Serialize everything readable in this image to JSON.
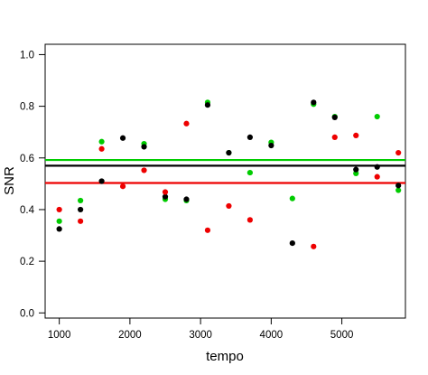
{
  "chart_data": {
    "type": "scatter",
    "xlabel": "tempo",
    "ylabel": "SNR",
    "xlim": [
      800,
      5900
    ],
    "ylim": [
      -0.02,
      1.04
    ],
    "xticks": [
      1000,
      2000,
      3000,
      4000,
      5000
    ],
    "xtick_labels": [
      "1000",
      "2000",
      "3000",
      "4000",
      "5000"
    ],
    "yticks": [
      0.0,
      0.2,
      0.4,
      0.6,
      0.8,
      1.0
    ],
    "ytick_labels": [
      "0.0",
      "0.2",
      "0.4",
      "0.6",
      "0.8",
      "1.0"
    ],
    "grid": false,
    "series": [
      {
        "color": "#00cc00",
        "x": [
          1000,
          1300,
          1600,
          2200,
          2500,
          2800,
          3100,
          3400,
          3700,
          4000,
          4300,
          4600,
          4900,
          5200,
          5500,
          5800
        ],
        "y": [
          0.355,
          0.435,
          0.663,
          0.655,
          0.44,
          0.435,
          0.815,
          0.62,
          0.543,
          0.66,
          0.443,
          0.808,
          0.76,
          0.54,
          0.76,
          0.475
        ],
        "hline": 0.592
      },
      {
        "color": "#000000",
        "x": [
          1000,
          1300,
          1600,
          1900,
          2200,
          2500,
          2800,
          3100,
          3400,
          3700,
          4000,
          4300,
          4600,
          4900,
          5200,
          5500,
          5800
        ],
        "y": [
          0.325,
          0.4,
          0.51,
          0.677,
          0.643,
          0.45,
          0.44,
          0.805,
          0.62,
          0.68,
          0.648,
          0.27,
          0.815,
          0.757,
          0.555,
          0.565,
          0.493
        ],
        "hline": 0.57
      },
      {
        "color": "#ee0000",
        "x": [
          1000,
          1300,
          1600,
          1900,
          2200,
          2500,
          2800,
          3100,
          3400,
          3700,
          4600,
          4900,
          5200,
          5500,
          5800
        ],
        "y": [
          0.4,
          0.355,
          0.635,
          0.49,
          0.552,
          0.468,
          0.733,
          0.32,
          0.414,
          0.36,
          0.257,
          0.68,
          0.687,
          0.527,
          0.62
        ],
        "hline": 0.503
      }
    ]
  }
}
